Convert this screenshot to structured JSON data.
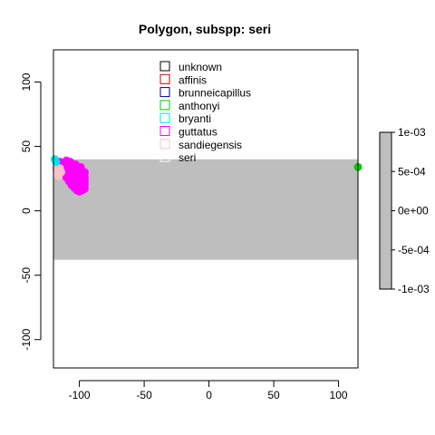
{
  "chart_data": {
    "type": "scatter",
    "title": "Polygon, subspp: seri",
    "xlabel": "",
    "ylabel": "",
    "xlim": [
      -120,
      115
    ],
    "ylim": [
      -122,
      125
    ],
    "x_ticks": [
      -100,
      -50,
      0,
      50,
      100
    ],
    "y_ticks": [
      -100,
      -50,
      0,
      50,
      100
    ],
    "x_tick_labels": [
      "-100",
      "-50",
      "0",
      "50",
      "100"
    ],
    "y_tick_labels": [
      "-100",
      "-50",
      "0",
      "50",
      "100"
    ],
    "grid": false,
    "legend_position": "top-center",
    "band": {
      "y_range": [
        -38,
        40
      ],
      "color": "#bebebe"
    },
    "legend": [
      {
        "name": "unknown",
        "color": "#000000"
      },
      {
        "name": "affinis",
        "color": "#cc0000"
      },
      {
        "name": "brunneicapillus",
        "color": "#00008b"
      },
      {
        "name": "anthonyi",
        "color": "#00cc00"
      },
      {
        "name": "bryanti",
        "color": "#00e5e5"
      },
      {
        "name": "guttatus",
        "color": "#ff00ff"
      },
      {
        "name": "sandiegensis",
        "color": "#ffc0cb"
      },
      {
        "name": "seri",
        "color": "#ffffff"
      }
    ],
    "series": [
      {
        "name": "guttatus",
        "color": "#ff00ff",
        "x": [
          -117,
          -116,
          -115,
          -114,
          -113,
          -112,
          -111,
          -110,
          -109,
          -108,
          -107,
          -106,
          -105,
          -104,
          -103,
          -102,
          -101,
          -100,
          -99,
          -98,
          -97,
          -96,
          -116,
          -114,
          -112,
          -110,
          -108,
          -106,
          -104,
          -102,
          -100,
          -98,
          -96,
          -113,
          -111,
          -109,
          -107,
          -105,
          -103,
          -101,
          -99,
          -97,
          -112,
          -110,
          -108,
          -106,
          -104,
          -102,
          -100,
          -98,
          -96,
          -110,
          -108,
          -106,
          -104,
          -102,
          -100,
          -98,
          -96,
          -108,
          -106,
          -104,
          -102,
          -100,
          -98,
          -96,
          -106,
          -104,
          -102,
          -100,
          -98,
          -96,
          -104,
          -102,
          -100,
          -98,
          -96,
          -102,
          -100,
          -98,
          -100,
          -98,
          -96,
          -110,
          -107,
          -103,
          -99
        ],
        "y": [
          37,
          37,
          38,
          37,
          37,
          36,
          37,
          36,
          35,
          36,
          35,
          35,
          34,
          35,
          34,
          33,
          33,
          32,
          32,
          31,
          30,
          30,
          35,
          34,
          34,
          33,
          33,
          32,
          32,
          31,
          30,
          30,
          29,
          32,
          31,
          31,
          30,
          30,
          29,
          29,
          28,
          28,
          29,
          28,
          28,
          27,
          27,
          26,
          26,
          25,
          26,
          26,
          25,
          25,
          24,
          24,
          23,
          23,
          24,
          23,
          22,
          22,
          21,
          21,
          20,
          21,
          20,
          19,
          19,
          18,
          18,
          19,
          18,
          17,
          17,
          16,
          17,
          16,
          15,
          16,
          19,
          20,
          22,
          39,
          38,
          36,
          34
        ]
      },
      {
        "name": "sandiegensis",
        "color": "#ffc0cb",
        "x": [
          -118,
          -117,
          -116,
          -115,
          -117,
          -116,
          -115,
          -114,
          -117,
          -116
        ],
        "y": [
          33,
          32,
          32,
          33,
          30,
          30,
          31,
          30,
          28,
          27
        ]
      },
      {
        "name": "bryanti",
        "color": "#00e5e5",
        "x": [
          -119,
          -118
        ],
        "y": [
          40,
          38
        ]
      },
      {
        "name": "anthonyi",
        "color": "#00cc00",
        "x": [
          115
        ],
        "y": [
          34
        ]
      }
    ],
    "colorbar": {
      "tick_labels": [
        "1e-03",
        "5e-04",
        "0e+00",
        "-5e-04",
        "-1e-03"
      ],
      "color": "#bebebe"
    }
  }
}
